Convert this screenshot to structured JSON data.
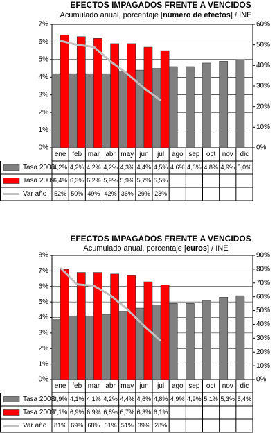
{
  "chart_data": [
    {
      "type": "bar-line",
      "title": "EFECTOS IMPAGADOS FRENTE A VENCIDOS",
      "subtitle_parts": [
        "Acumulado anual, porcentaje [",
        "número de efectos",
        "] / INE"
      ],
      "categories": [
        "ene",
        "feb",
        "mar",
        "abr",
        "may",
        "jun",
        "jul",
        "ago",
        "sep",
        "oct",
        "nov",
        "dic"
      ],
      "series": [
        {
          "name": "Tasa 2008",
          "kind": "bar",
          "color": "#808080",
          "values": [
            4.2,
            4.2,
            4.2,
            4.2,
            4.3,
            4.4,
            4.5,
            4.6,
            4.6,
            4.8,
            4.9,
            5.0
          ],
          "value_labels": [
            "4,2%",
            "4,2%",
            "4,2%",
            "4,2%",
            "4,3%",
            "4,4%",
            "4,5%",
            "4,6%",
            "4,6%",
            "4,8%",
            "4,9%",
            "5,0%"
          ]
        },
        {
          "name": "Tasa 2009",
          "kind": "bar",
          "color": "#ff0000",
          "values": [
            6.4,
            6.3,
            6.2,
            5.9,
            5.9,
            5.7,
            5.5,
            null,
            null,
            null,
            null,
            null
          ],
          "value_labels": [
            "6,4%",
            "6,3%",
            "6,2%",
            "5,9%",
            "5,9%",
            "5,7%",
            "5,5%",
            null,
            null,
            null,
            null,
            null
          ]
        },
        {
          "name": "Var año",
          "kind": "line",
          "axis": "y2",
          "color": "#c0c0c0",
          "values": [
            52,
            50,
            49,
            42,
            36,
            29,
            23,
            null,
            null,
            null,
            null,
            null
          ],
          "value_labels": [
            "52%",
            "50%",
            "49%",
            "42%",
            "36%",
            "29%",
            "23%",
            null,
            null,
            null,
            null,
            null
          ]
        }
      ],
      "ylim": [
        0,
        7
      ],
      "yticks": [
        {
          "value": 0,
          "label": "0%"
        },
        {
          "value": 1,
          "label": "1%"
        },
        {
          "value": 2,
          "label": "2%"
        },
        {
          "value": 3,
          "label": "3%"
        },
        {
          "value": 4,
          "label": "4%"
        },
        {
          "value": 5,
          "label": "5%"
        },
        {
          "value": 6,
          "label": "6%"
        },
        {
          "value": 7,
          "label": "7%"
        }
      ],
      "y2lim": [
        0,
        60
      ],
      "y2ticks": [
        {
          "value": 0,
          "label": "0%"
        },
        {
          "value": 10,
          "label": "10%"
        },
        {
          "value": 20,
          "label": "20%"
        },
        {
          "value": 30,
          "label": "30%"
        },
        {
          "value": 40,
          "label": "40%"
        },
        {
          "value": 50,
          "label": "50%"
        },
        {
          "value": 60,
          "label": "60%"
        }
      ],
      "grid": true
    },
    {
      "type": "bar-line",
      "title": "EFECTOS IMPAGADOS FRENTE A VENCIDOS",
      "subtitle_parts": [
        "Acumulado anual, porcentaje [",
        "euros",
        "] / INE"
      ],
      "categories": [
        "ene",
        "feb",
        "mar",
        "abr",
        "may",
        "jun",
        "jul",
        "ago",
        "sep",
        "oct",
        "nov",
        "dic"
      ],
      "series": [
        {
          "name": "Tasa 2008",
          "kind": "bar",
          "color": "#808080",
          "values": [
            3.9,
            4.1,
            4.1,
            4.2,
            4.4,
            4.6,
            4.8,
            4.9,
            4.9,
            5.1,
            5.3,
            5.4
          ],
          "value_labels": [
            "3,9%",
            "4,1%",
            "4,1%",
            "4,2%",
            "4,4%",
            "4,6%",
            "4,8%",
            "4,9%",
            "4,9%",
            "5,1%",
            "5,3%",
            "5,4%"
          ]
        },
        {
          "name": "Tasa 2009",
          "kind": "bar",
          "color": "#ff0000",
          "values": [
            7.1,
            6.9,
            6.9,
            6.8,
            6.7,
            6.3,
            6.1,
            null,
            null,
            null,
            null,
            null
          ],
          "value_labels": [
            "7,1%",
            "6,9%",
            "6,9%",
            "6,8%",
            "6,7%",
            "6,3%",
            "6,1%",
            null,
            null,
            null,
            null,
            null
          ]
        },
        {
          "name": "Var año",
          "kind": "line",
          "axis": "y2",
          "color": "#c0c0c0",
          "values": [
            81,
            69,
            68,
            61,
            51,
            39,
            28,
            null,
            null,
            null,
            null,
            null
          ],
          "value_labels": [
            "81%",
            "69%",
            "68%",
            "61%",
            "51%",
            "39%",
            "28%",
            null,
            null,
            null,
            null,
            null
          ]
        }
      ],
      "ylim": [
        0,
        8
      ],
      "yticks": [
        {
          "value": 0,
          "label": "0%"
        },
        {
          "value": 1,
          "label": "1%"
        },
        {
          "value": 2,
          "label": "2%"
        },
        {
          "value": 3,
          "label": "3%"
        },
        {
          "value": 4,
          "label": "4%"
        },
        {
          "value": 5,
          "label": "5%"
        },
        {
          "value": 6,
          "label": "6%"
        },
        {
          "value": 7,
          "label": "7%"
        },
        {
          "value": 8,
          "label": "8%"
        }
      ],
      "y2lim": [
        0,
        90
      ],
      "y2ticks": [
        {
          "value": 0,
          "label": "0%"
        },
        {
          "value": 10,
          "label": "10%"
        },
        {
          "value": 20,
          "label": "20%"
        },
        {
          "value": 30,
          "label": "30%"
        },
        {
          "value": 40,
          "label": "40%"
        },
        {
          "value": 50,
          "label": "50%"
        },
        {
          "value": 60,
          "label": "60%"
        },
        {
          "value": 70,
          "label": "70%"
        },
        {
          "value": 80,
          "label": "80%"
        },
        {
          "value": 90,
          "label": "90%"
        }
      ],
      "grid": true
    }
  ]
}
